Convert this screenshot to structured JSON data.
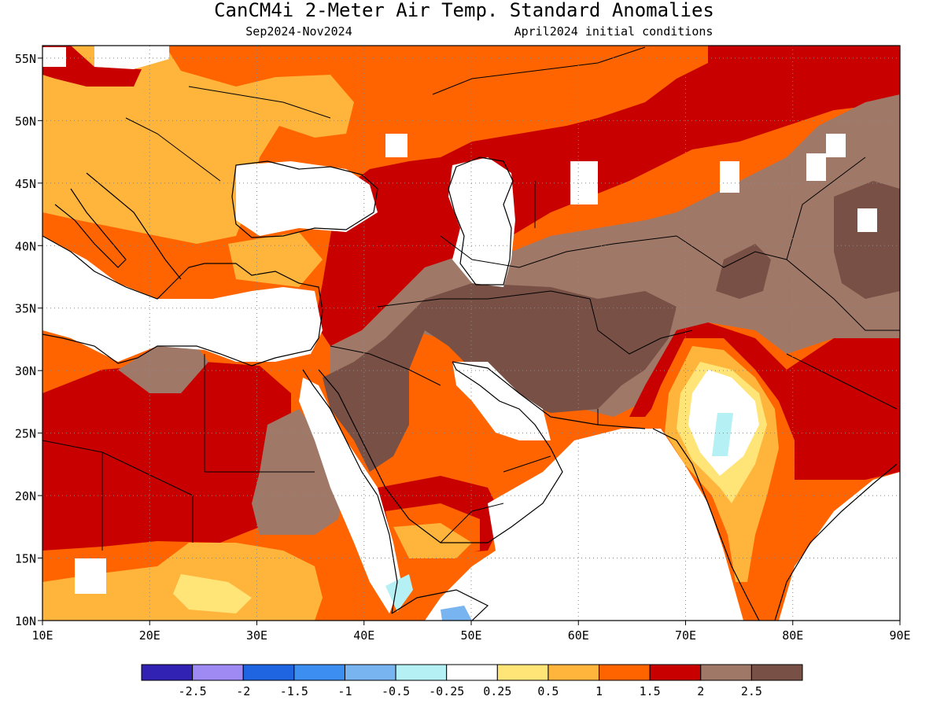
{
  "header": {
    "title": "CanCM4i 2-Meter Air Temp. Standard Anomalies",
    "period": "Sep2024-Nov2024",
    "initial_conditions": "April2024 initial conditions"
  },
  "map": {
    "lon_range": [
      10,
      90
    ],
    "lat_range": [
      10,
      56
    ],
    "lat_ticks": [
      {
        "value": 55,
        "label": "55N"
      },
      {
        "value": 50,
        "label": "50N"
      },
      {
        "value": 45,
        "label": "45N"
      },
      {
        "value": 40,
        "label": "40N"
      },
      {
        "value": 35,
        "label": "35N"
      },
      {
        "value": 30,
        "label": "30N"
      },
      {
        "value": 25,
        "label": "25N"
      },
      {
        "value": 20,
        "label": "20N"
      },
      {
        "value": 15,
        "label": "15N"
      },
      {
        "value": 10,
        "label": "10N"
      }
    ],
    "lon_ticks": [
      {
        "value": 10,
        "label": "10E"
      },
      {
        "value": 20,
        "label": "20E"
      },
      {
        "value": 30,
        "label": "30E"
      },
      {
        "value": 40,
        "label": "40E"
      },
      {
        "value": 50,
        "label": "50E"
      },
      {
        "value": 60,
        "label": "60E"
      },
      {
        "value": 70,
        "label": "70E"
      },
      {
        "value": 80,
        "label": "80E"
      },
      {
        "value": 90,
        "label": "90E"
      }
    ],
    "gridlines": "dotted"
  },
  "legend": {
    "colors": [
      "#3222b4",
      "#9f8af4",
      "#1f64e0",
      "#3c8ef0",
      "#78b4f0",
      "#b4f0f4",
      "#ffffff",
      "#ffe478",
      "#ffb43c",
      "#ff6400",
      "#c80000",
      "#a07868",
      "#785046"
    ],
    "labels": [
      "-2.5",
      "-2",
      "-1.5",
      "-1",
      "-0.5",
      "-0.25",
      "0.25",
      "0.5",
      "1",
      "1.5",
      "2",
      "2.5"
    ]
  }
}
